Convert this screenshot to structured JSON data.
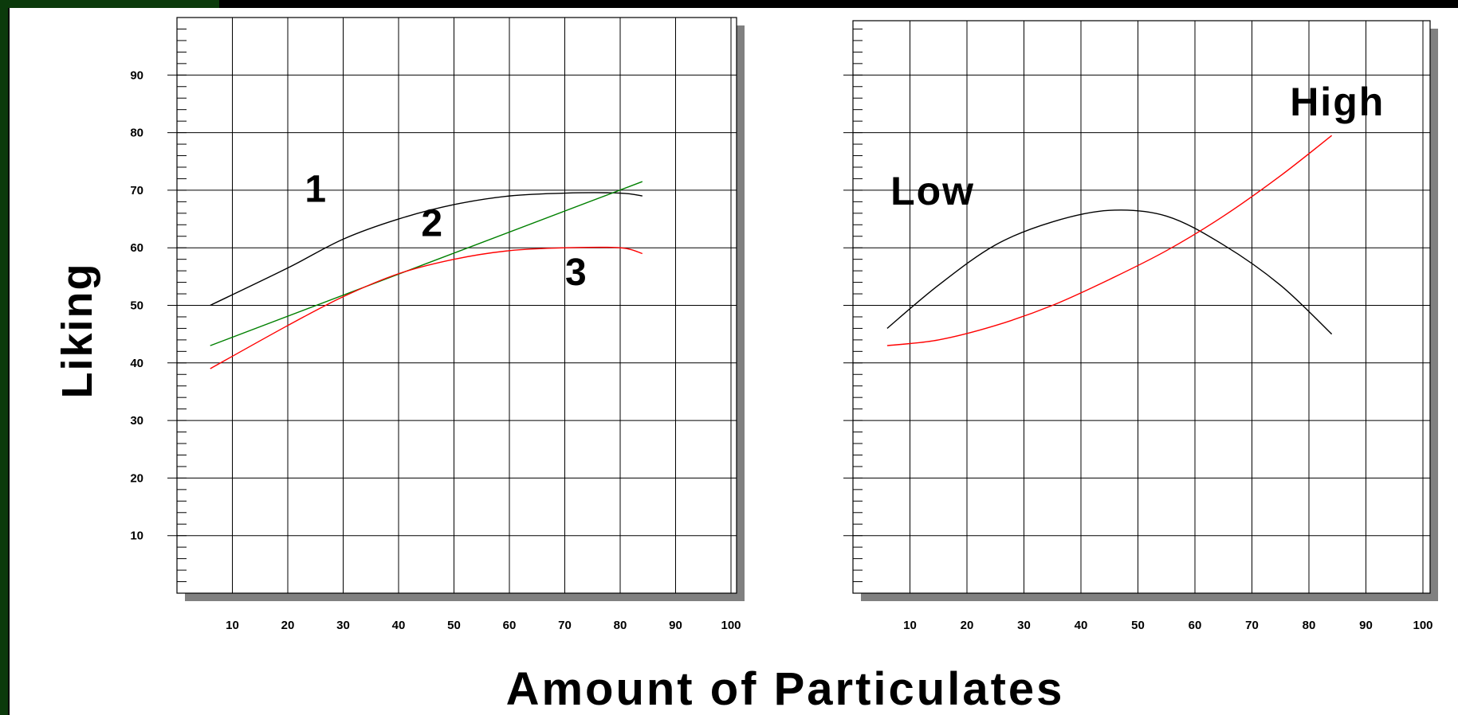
{
  "frame": {
    "outer_color": "#000000",
    "accent_color": "#0b3a0b",
    "panel_color": "#ffffff"
  },
  "titles": {
    "xlabel": "Amount of Particulates",
    "ylabel": "Liking"
  },
  "chart_data": [
    {
      "type": "line",
      "title": "",
      "xlabel": "Amount of Particulates",
      "ylabel": "Liking",
      "xlim": [
        0,
        100
      ],
      "ylim": [
        0,
        100
      ],
      "xticks": [
        10,
        20,
        30,
        40,
        50,
        60,
        70,
        80,
        90,
        100
      ],
      "yticks": [
        10,
        20,
        30,
        40,
        50,
        60,
        70,
        80,
        90
      ],
      "grid": true,
      "series": [
        {
          "name": "1",
          "color": "#000000",
          "x": [
            6,
            20,
            30,
            40,
            50,
            60,
            70,
            80,
            84
          ],
          "y": [
            50,
            56.5,
            61.5,
            65,
            67.5,
            69,
            69.5,
            69.5,
            69
          ]
        },
        {
          "name": "2",
          "color": "#008000",
          "x": [
            6,
            84
          ],
          "y": [
            43,
            71.5
          ]
        },
        {
          "name": "3",
          "color": "#ff0000",
          "x": [
            6,
            20,
            30,
            40,
            50,
            60,
            70,
            80,
            84
          ],
          "y": [
            39,
            46.5,
            51.5,
            55.5,
            58,
            59.5,
            60,
            60,
            59
          ]
        }
      ],
      "annotations": [
        {
          "text": "1",
          "x": 25,
          "y": 68
        },
        {
          "text": "2",
          "x": 46,
          "y": 62
        },
        {
          "text": "3",
          "x": 72,
          "y": 53.5
        }
      ]
    },
    {
      "type": "line",
      "title": "",
      "xlabel": "Amount of Particulates",
      "ylabel": "",
      "xlim": [
        0,
        100
      ],
      "ylim": [
        0,
        100
      ],
      "xticks": [
        10,
        20,
        30,
        40,
        50,
        60,
        70,
        80,
        90,
        100
      ],
      "yticks": [
        10,
        20,
        30,
        40,
        50,
        60,
        70,
        80,
        90
      ],
      "show_ytick_labels": false,
      "grid": true,
      "series": [
        {
          "name": "Low",
          "color": "#000000",
          "x": [
            6,
            15,
            25,
            35,
            45,
            55,
            65,
            75,
            84
          ],
          "y": [
            46,
            53.5,
            60.5,
            64.5,
            66.5,
            65.5,
            60.5,
            53.5,
            45
          ]
        },
        {
          "name": "High",
          "color": "#ff0000",
          "x": [
            6,
            15,
            25,
            35,
            45,
            55,
            65,
            75,
            84
          ],
          "y": [
            43,
            44,
            46.5,
            50,
            54.5,
            59.5,
            65.5,
            72.5,
            79.5
          ]
        }
      ],
      "annotations": [
        {
          "text": "Low",
          "x": 14,
          "y": 67.5
        },
        {
          "text": "High",
          "x": 85,
          "y": 83
        }
      ]
    }
  ]
}
